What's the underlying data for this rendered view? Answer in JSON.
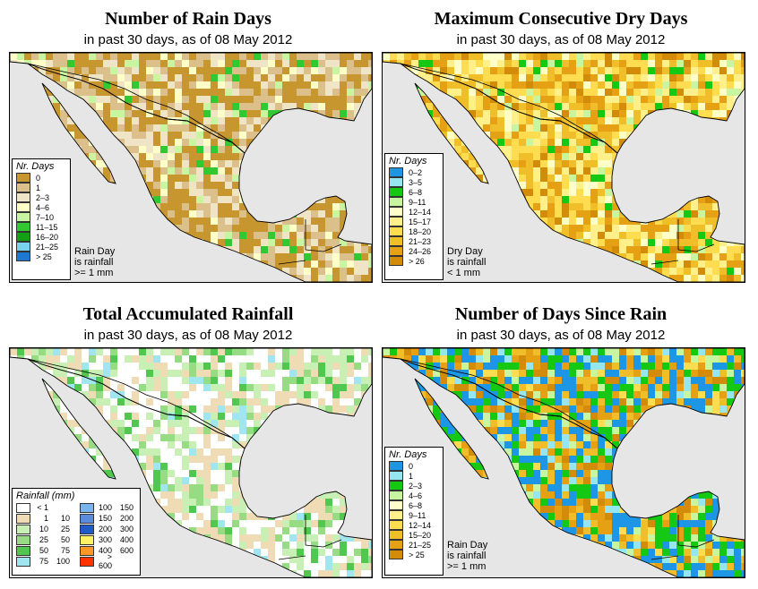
{
  "panels": {
    "rain_days": {
      "title": "Number of Rain Days",
      "subtitle": "in past 30 days, as of  08 May 2012",
      "legend_title": "Nr. Days",
      "legend": [
        {
          "label": "0",
          "color": "#c8962e"
        },
        {
          "label": "1",
          "color": "#dcc08c"
        },
        {
          "label": "2–3",
          "color": "#f0e4c6"
        },
        {
          "label": "4–6",
          "color": "#ffffc8"
        },
        {
          "label": "7–10",
          "color": "#c8f5a0"
        },
        {
          "label": "11–15",
          "color": "#32c832"
        },
        {
          "label": "16–20",
          "color": "#14a014"
        },
        {
          "label": "21–25",
          "color": "#78d2f0"
        },
        {
          "label": "> 25",
          "color": "#1e78d2"
        }
      ],
      "note": [
        "Rain Day",
        "is rainfall",
        ">= 1 mm"
      ]
    },
    "dry_days": {
      "title": "Maximum Consecutive Dry Days",
      "subtitle": "in past 30 days, as of  08 May 2012",
      "legend_title": "Nr. Days",
      "legend": [
        {
          "label": "0–2",
          "color": "#1e96e6"
        },
        {
          "label": "3–5",
          "color": "#96e6f0"
        },
        {
          "label": "6–8",
          "color": "#14c814"
        },
        {
          "label": "9–11",
          "color": "#c8f5a0"
        },
        {
          "label": "12–14",
          "color": "#ffffc8"
        },
        {
          "label": "15–17",
          "color": "#fff08c"
        },
        {
          "label": "18–20",
          "color": "#ffdc50"
        },
        {
          "label": "21–23",
          "color": "#f0be28"
        },
        {
          "label": "24–26",
          "color": "#e6a014"
        },
        {
          "label": "> 26",
          "color": "#d28c0a"
        }
      ],
      "note": [
        "Dry Day",
        "is rainfall",
        "< 1 mm"
      ]
    },
    "rainfall": {
      "title": "Total Accumulated Rainfall",
      "subtitle": "in past 30 days, as of  08 May 2012",
      "legend_title": "Rainfall (mm)",
      "legend": [
        {
          "lo": "< 1",
          "hi": "",
          "color": "#ffffff"
        },
        {
          "lo": "1",
          "hi": "10",
          "color": "#f0dcb4"
        },
        {
          "lo": "10",
          "hi": "25",
          "color": "#c8f0b4"
        },
        {
          "lo": "25",
          "hi": "50",
          "color": "#96dc82"
        },
        {
          "lo": "50",
          "hi": "75",
          "color": "#50c850"
        },
        {
          "lo": "75",
          "hi": "100",
          "color": "#a0e6f0"
        },
        {
          "lo": "100",
          "hi": "150",
          "color": "#78b4f0"
        },
        {
          "lo": "150",
          "hi": "200",
          "color": "#5a8cdc"
        },
        {
          "lo": "200",
          "hi": "300",
          "color": "#1e5ac8"
        },
        {
          "lo": "300",
          "hi": "400",
          "color": "#fff064"
        },
        {
          "lo": "400",
          "hi": "600",
          "color": "#ff9628"
        },
        {
          "lo": "> 600",
          "hi": "",
          "color": "#ff3200"
        }
      ]
    },
    "since_rain": {
      "title": "Number of Days Since Rain",
      "subtitle": "in past 30 days, as of  08 May 2012",
      "legend_title": "Nr. Days",
      "legend": [
        {
          "label": "0",
          "color": "#1e96e6"
        },
        {
          "label": "1",
          "color": "#96e6f0"
        },
        {
          "label": "2–3",
          "color": "#14c814"
        },
        {
          "label": "4–6",
          "color": "#c8f5a0"
        },
        {
          "label": "6–8",
          "color": "#ffffc8"
        },
        {
          "label": "9–11",
          "color": "#fff08c"
        },
        {
          "label": "12–14",
          "color": "#ffdc50"
        },
        {
          "label": "15–20",
          "color": "#f0be28"
        },
        {
          "label": "21–25",
          "color": "#e6a014"
        },
        {
          "label": "> 25",
          "color": "#d28c0a"
        }
      ],
      "note": [
        "Rain Day",
        "is rainfall",
        ">= 1 mm"
      ]
    }
  },
  "colors": {
    "ocean": "#e6e6e6",
    "border": "#000000"
  }
}
